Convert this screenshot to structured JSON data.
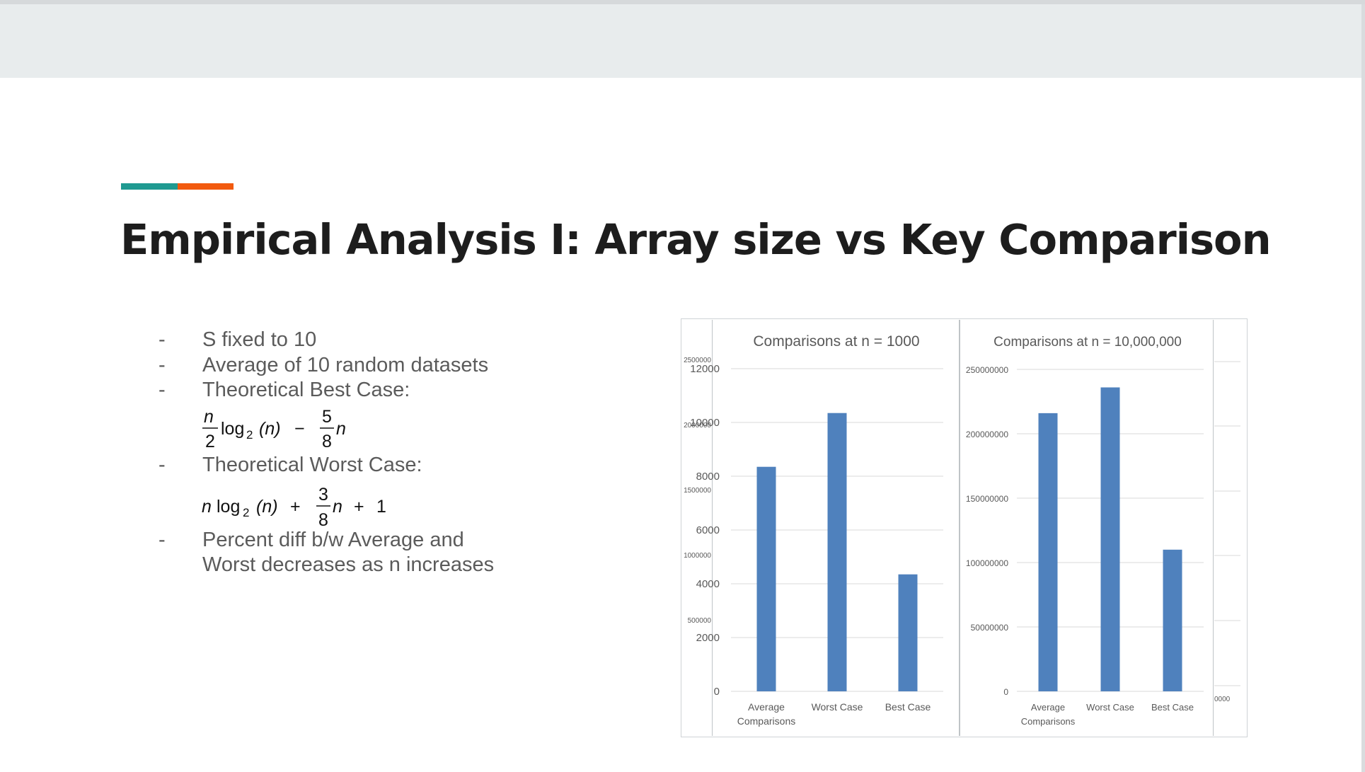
{
  "slide": {
    "title": "Empirical Analysis I: Array size vs Key Comparison",
    "bullets": [
      {
        "dash": "-",
        "text": "S fixed to 10"
      },
      {
        "dash": "-",
        "text": "Average of 10 random datasets"
      },
      {
        "dash": "-",
        "text": "Theoretical Best Case:"
      },
      {
        "dash": "-",
        "text": "Theoretical Worst Case:"
      },
      {
        "dash": "-",
        "text": "Percent diff b/w Average and"
      },
      {
        "dash": "",
        "text": "Worst decreases as n increases"
      }
    ],
    "formulas": {
      "best": {
        "n_num": "n",
        "n_den": "2",
        "log": "log",
        "base": "2",
        "arg": "(n)",
        "minus": "−",
        "frac_num": "5",
        "frac_den": "8",
        "tail": "n"
      },
      "worst": {
        "lead": "n",
        "log": "log",
        "base": "2",
        "arg": "(n)",
        "plus": "+",
        "frac_num": "3",
        "frac_den": "8",
        "tail": "n",
        "plus2": "+",
        "one": "1"
      }
    },
    "colors": {
      "accent_teal": "#1f9a91",
      "accent_orange": "#f25a0e",
      "bar": "#4f81bd",
      "grid": "#d9d9d9",
      "axis_text": "#595959"
    }
  },
  "chart_data": [
    {
      "type": "bar",
      "title": "Comparisons  at n = 1000",
      "categories": [
        "Average Comparisons",
        "Worst Case",
        "Best Case"
      ],
      "category_lines": [
        [
          "Average",
          "Comparisons"
        ],
        [
          "Worst Case"
        ],
        [
          "Best Case"
        ]
      ],
      "values": [
        8350,
        10350,
        4350
      ],
      "ylim": [
        0,
        12000
      ],
      "yticks": [
        0,
        2000,
        4000,
        6000,
        8000,
        10000,
        12000
      ],
      "ytick_labels": [
        "0",
        "2000",
        "4000",
        "6000",
        "8000",
        "10000",
        "12000"
      ],
      "grid": true
    },
    {
      "type": "bar",
      "title": "Comparisons at n = 10,000,000",
      "categories": [
        "Average Comparisons",
        "Worst Case",
        "Best Case"
      ],
      "category_lines": [
        [
          "Average",
          "Comparisons"
        ],
        [
          "Worst Case"
        ],
        [
          "Best Case"
        ]
      ],
      "values": [
        216000000,
        236000000,
        110000000
      ],
      "ylim": [
        0,
        250000000
      ],
      "yticks": [
        0,
        50000000,
        100000000,
        150000000,
        200000000,
        250000000
      ],
      "ytick_labels": [
        "0",
        "50000000",
        "100000000",
        "150000000",
        "200000000",
        "250000000"
      ],
      "grid": true
    },
    {
      "type": "bar",
      "partial": "left-cropped",
      "ytick_labels": [
        "500000",
        "1000000",
        "1500000",
        "2000000",
        "2500000"
      ],
      "grid": true
    },
    {
      "type": "bar",
      "partial": "right-cropped",
      "ytick_labels": [
        "0000"
      ],
      "grid": true
    }
  ]
}
